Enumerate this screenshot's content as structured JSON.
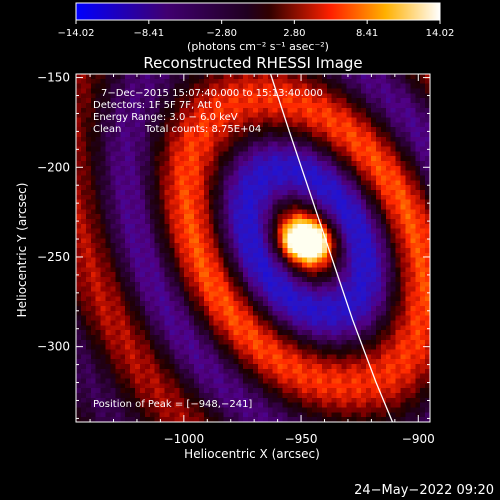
{
  "chart_data": {
    "type": "heatmap",
    "title": "Reconstructed RHESSI Image",
    "xlabel": "Heliocentric X (arcsec)",
    "ylabel": "Heliocentric Y (arcsec)",
    "xlim": [
      -1046,
      -895
    ],
    "ylim": [
      -342,
      -148
    ],
    "x_ticks": [
      -1000,
      -950,
      -900
    ],
    "y_ticks": [
      -150,
      -200,
      -250,
      -300
    ],
    "x_tick_labels": [
      "−1000",
      "−950",
      "−900"
    ],
    "y_tick_labels": [
      "−150",
      "−200",
      "−250",
      "−300"
    ],
    "colorbar": {
      "min": -14.02,
      "max": 14.02,
      "tick_labels": [
        "−14.02",
        "−8.41",
        "−2.80",
        "2.80",
        "8.41",
        "14.02"
      ],
      "tick_values": [
        -14.02,
        -8.41,
        -2.8,
        2.8,
        8.41,
        14.02
      ],
      "unit_label": "(photons cm⁻² s⁻¹ asec⁻²)"
    },
    "annotations": {
      "time_range": "7−Dec−2015 15:07:40.000 to 15:13:40.000",
      "detectors": "Detectors: 1F 5F 7F, Att 0",
      "energy_range": "Energy Range: 3.0 − 6.0 keV",
      "clean": "Clean",
      "total_counts": "Total counts: 8.75E+04",
      "peak_position": "Position of Peak = [−948,−241]"
    },
    "peak": {
      "x": -948,
      "y": -241
    },
    "limb_points": [
      [
        -963,
        -148
      ],
      [
        -955,
        -180
      ],
      [
        -946,
        -215
      ],
      [
        -937,
        -250
      ],
      [
        -928,
        -285
      ],
      [
        -918,
        -320
      ],
      [
        -911,
        -342
      ]
    ],
    "grid": false,
    "legend": "none"
  },
  "footer": {
    "timestamp": "24−May−2022 09:20"
  }
}
